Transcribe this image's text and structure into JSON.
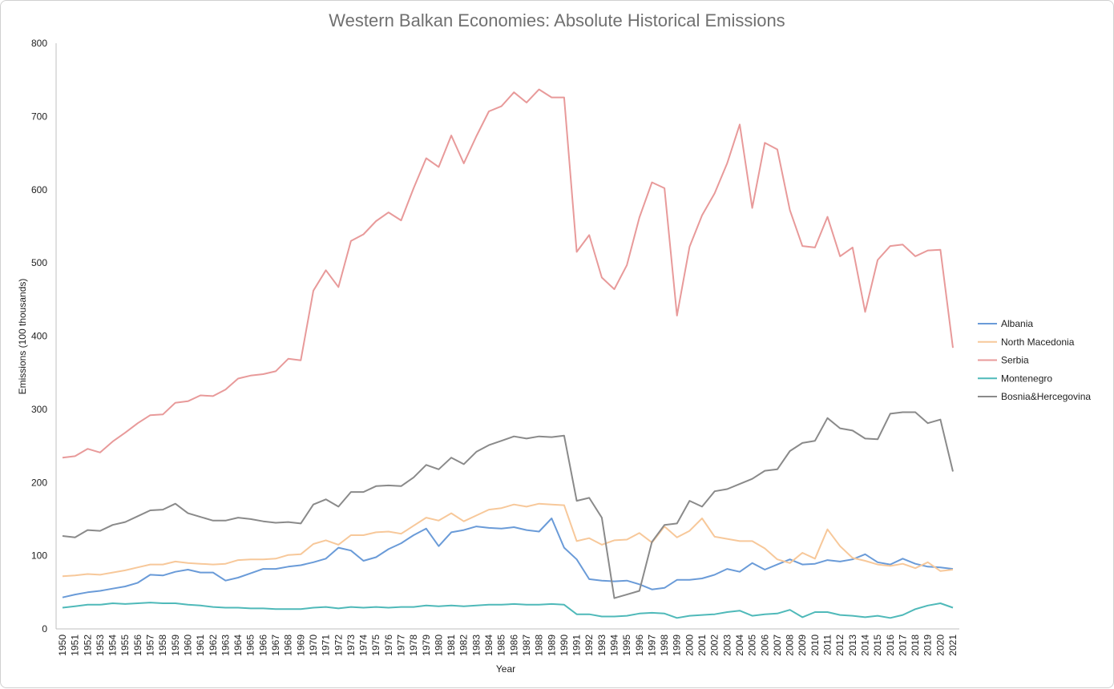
{
  "chart_data": {
    "type": "line",
    "title": "Western Balkan Economies: Absolute Historical Emissions",
    "xlabel": "Year",
    "ylabel": "Emissions (100 thousands)",
    "ylim": [
      0,
      800
    ],
    "yticks": [
      "0",
      "100",
      "200",
      "300",
      "400",
      "500",
      "600",
      "700",
      "800"
    ],
    "grid": false,
    "legend_position": "right",
    "x": [
      "1950",
      "1951",
      "1952",
      "1953",
      "1954",
      "1955",
      "1956",
      "1957",
      "1958",
      "1959",
      "1960",
      "1961",
      "1962",
      "1963",
      "1964",
      "1965",
      "1966",
      "1967",
      "1968",
      "1969",
      "1970",
      "1971",
      "1972",
      "1973",
      "1974",
      "1975",
      "1976",
      "1977",
      "1978",
      "1979",
      "1980",
      "1981",
      "1982",
      "1983",
      "1984",
      "1985",
      "1986",
      "1987",
      "1988",
      "1989",
      "1990",
      "1991",
      "1992",
      "1993",
      "1994",
      "1995",
      "1996",
      "1997",
      "1998",
      "1999",
      "2000",
      "2001",
      "2002",
      "2003",
      "2004",
      "2005",
      "2006",
      "2007",
      "2008",
      "2009",
      "2010",
      "2011",
      "2012",
      "2013",
      "2014",
      "2015",
      "2016",
      "2017",
      "2018",
      "2019",
      "2020",
      "2021"
    ],
    "series": [
      {
        "name": "Albania",
        "color": "#6a9bd8",
        "values": [
          43,
          47,
          50,
          52,
          55,
          58,
          63,
          74,
          73,
          78,
          81,
          77,
          77,
          66,
          70,
          76,
          82,
          82,
          85,
          87,
          91,
          96,
          111,
          107,
          93,
          98,
          109,
          117,
          128,
          137,
          113,
          132,
          135,
          140,
          138,
          137,
          139,
          135,
          133,
          151,
          111,
          95,
          68,
          66,
          65,
          66,
          61,
          54,
          56,
          67,
          67,
          69,
          74,
          82,
          78,
          90,
          81,
          88,
          95,
          88,
          89,
          94,
          92,
          95,
          102,
          91,
          88,
          96,
          89,
          85,
          84,
          82
        ]
      },
      {
        "name": "North Macedonia",
        "color": "#f7c89a",
        "values": [
          72,
          73,
          75,
          74,
          77,
          80,
          84,
          88,
          88,
          92,
          90,
          89,
          88,
          89,
          94,
          95,
          95,
          96,
          101,
          102,
          116,
          121,
          115,
          128,
          128,
          132,
          133,
          130,
          141,
          152,
          148,
          158,
          147,
          155,
          163,
          165,
          170,
          167,
          171,
          170,
          169,
          120,
          124,
          115,
          121,
          122,
          131,
          118,
          140,
          125,
          134,
          151,
          126,
          123,
          120,
          120,
          110,
          95,
          90,
          104,
          96,
          136,
          113,
          97,
          93,
          88,
          86,
          89,
          83,
          91,
          79,
          81
        ]
      },
      {
        "name": "Serbia",
        "color": "#e89a9a",
        "values": [
          234,
          236,
          246,
          241,
          256,
          268,
          281,
          292,
          293,
          309,
          311,
          319,
          318,
          327,
          342,
          346,
          348,
          352,
          369,
          367,
          462,
          490,
          467,
          530,
          539,
          557,
          569,
          558,
          602,
          643,
          631,
          674,
          636,
          673,
          707,
          714,
          733,
          719,
          737,
          726,
          726,
          515,
          538,
          480,
          464,
          497,
          562,
          610,
          602,
          428,
          522,
          565,
          595,
          636,
          689,
          575,
          664,
          655,
          572,
          523,
          521,
          563,
          509,
          521,
          433,
          504,
          523,
          525,
          509,
          517,
          518,
          384
        ]
      },
      {
        "name": "Montenegro",
        "color": "#4fb9b9",
        "values": [
          29,
          31,
          33,
          33,
          35,
          34,
          35,
          36,
          35,
          35,
          33,
          32,
          30,
          29,
          29,
          28,
          28,
          27,
          27,
          27,
          29,
          30,
          28,
          30,
          29,
          30,
          29,
          30,
          30,
          32,
          31,
          32,
          31,
          32,
          33,
          33,
          34,
          33,
          33,
          34,
          33,
          20,
          20,
          17,
          17,
          18,
          21,
          22,
          21,
          15,
          18,
          19,
          20,
          23,
          25,
          18,
          20,
          21,
          26,
          16,
          23,
          23,
          19,
          18,
          16,
          18,
          15,
          19,
          27,
          32,
          35,
          29
        ]
      },
      {
        "name": "Bosnia&Hercegovina",
        "color": "#8a8a8a",
        "values": [
          127,
          125,
          135,
          134,
          142,
          146,
          154,
          162,
          163,
          171,
          158,
          153,
          148,
          148,
          152,
          150,
          147,
          145,
          146,
          144,
          170,
          177,
          167,
          187,
          187,
          195,
          196,
          195,
          207,
          224,
          218,
          234,
          225,
          242,
          251,
          257,
          263,
          260,
          263,
          262,
          264,
          175,
          179,
          152,
          42,
          47,
          52,
          119,
          142,
          144,
          175,
          167,
          188,
          191,
          198,
          205,
          216,
          218,
          243,
          254,
          257,
          288,
          274,
          271,
          260,
          259,
          294,
          296,
          296,
          281,
          286,
          215
        ]
      }
    ]
  }
}
